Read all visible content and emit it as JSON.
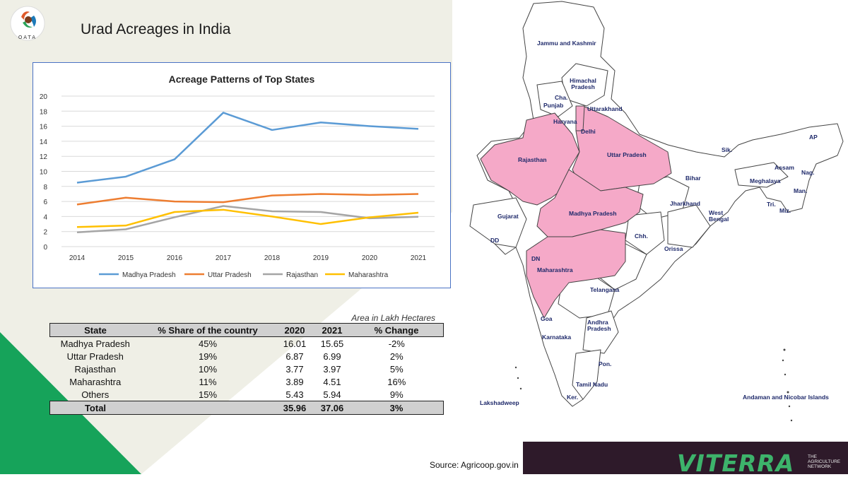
{
  "slide": {
    "title": "Urad Acreages in India",
    "logo_text": "OATA"
  },
  "chart_data": {
    "type": "line",
    "title": "Acreage Patterns of Top States",
    "x": [
      2014,
      2015,
      2016,
      2017,
      2018,
      2019,
      2020,
      2021
    ],
    "ylim": [
      0,
      20
    ],
    "yticks": [
      0,
      2,
      4,
      6,
      8,
      10,
      12,
      14,
      16,
      18,
      20
    ],
    "grid": true,
    "legend": "bottom",
    "series": [
      {
        "name": "Madhya Pradesh",
        "color": "#5b9bd5",
        "values": [
          8.5,
          9.3,
          11.6,
          17.8,
          15.5,
          16.5,
          16.01,
          15.65
        ]
      },
      {
        "name": "Uttar Pradesh",
        "color": "#ed7d31",
        "values": [
          5.6,
          6.5,
          6.0,
          5.9,
          6.8,
          7.0,
          6.87,
          6.99
        ]
      },
      {
        "name": "Rajasthan",
        "color": "#a5a5a5",
        "values": [
          1.9,
          2.3,
          3.9,
          5.4,
          4.7,
          4.6,
          3.77,
          3.97
        ]
      },
      {
        "name": "Maharashtra",
        "color": "#ffc000",
        "values": [
          2.6,
          2.8,
          4.6,
          4.9,
          4.0,
          3.0,
          3.89,
          4.51
        ]
      }
    ]
  },
  "table": {
    "note": "Area in Lakh Hectares",
    "headers": [
      "State",
      "% Share of the country",
      "2020",
      "2021",
      "% Change"
    ],
    "rows": [
      [
        "Madhya Pradesh",
        "45%",
        "16.01",
        "15.65",
        "-2%"
      ],
      [
        "Uttar Pradesh",
        "19%",
        "6.87",
        "6.99",
        "2%"
      ],
      [
        "Rajasthan",
        "10%",
        "3.77",
        "3.97",
        "5%"
      ],
      [
        "Maharashtra",
        "11%",
        "3.89",
        "4.51",
        "16%"
      ],
      [
        "Others",
        "15%",
        "5.43",
        "5.94",
        "9%"
      ]
    ],
    "total": [
      "Total",
      "",
      "35.96",
      "37.06",
      "3%"
    ]
  },
  "map": {
    "highlight_color": "#f5a9c8",
    "labels": [
      "Jammu and Kashmir",
      "Himachal Pradesh",
      "Cha.",
      "Punjab",
      "Uttarakhand",
      "Haryana",
      "Delhi",
      "Rajasthan",
      "Uttar Pradesh",
      "Sik.",
      "AP",
      "Assam",
      "Nag.",
      "Meghalaya",
      "Man.",
      "Bihar",
      "Jharkhand",
      "Tri.",
      "Miz.",
      "West Bengal",
      "Gujarat",
      "Madhya Pradesh",
      "DD",
      "Chh.",
      "Orissa",
      "DN",
      "Maharashtra",
      "Telangana",
      "Goa",
      "Andhra Pradesh",
      "Karnataka",
      "Pon.",
      "Tamil Nadu",
      "Ker.",
      "Lakshadweep",
      "Andaman and Nicobar Islands"
    ]
  },
  "footer": {
    "source": "Source: Agricoop.gov.in",
    "brand": "VITERRA",
    "tagline": "THE AGRICULTURE NETWORK"
  }
}
